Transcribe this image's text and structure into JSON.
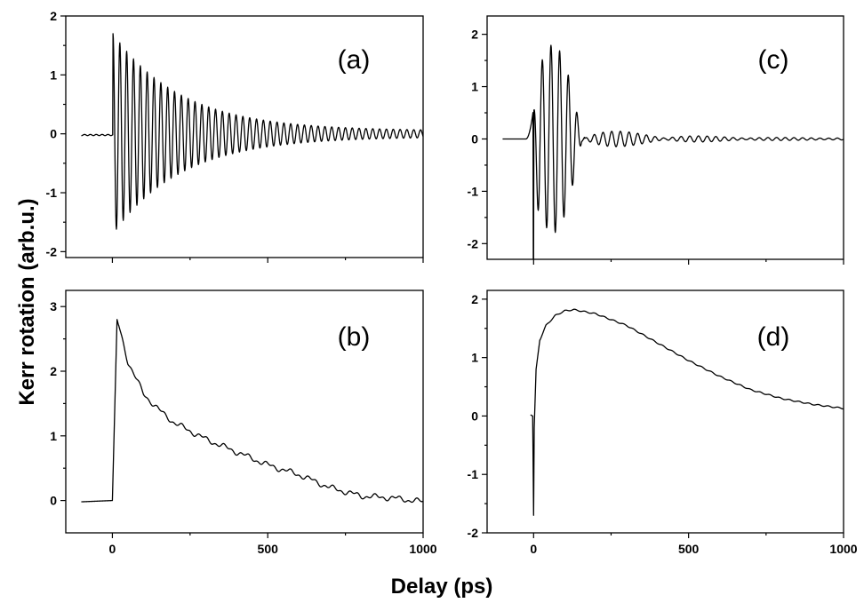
{
  "figure": {
    "ylabel": "Kerr rotation (arb.u.)",
    "xlabel": "Delay (ps)"
  },
  "chart_data": [
    {
      "id": "a",
      "type": "line",
      "panel_label": "(a)",
      "xlim": [
        -150,
        1000
      ],
      "ylim": [
        -2.1,
        2.0
      ],
      "xticks": [
        0,
        500,
        1000
      ],
      "yticks": [
        -2,
        -1,
        0,
        1,
        2
      ],
      "show_xticklabels": false,
      "grid": false,
      "series": [
        {
          "kind": "damped_oscillation",
          "pre_level": -0.02,
          "onset": 2,
          "amplitude": 1.65,
          "period": 22,
          "decay": 220,
          "floor": 0.05,
          "offset": 0.0,
          "x_start": -100,
          "x_end": 1000
        }
      ]
    },
    {
      "id": "b",
      "type": "line",
      "panel_label": "(b)",
      "xlim": [
        -150,
        1000
      ],
      "ylim": [
        -0.5,
        3.25
      ],
      "xticks": [
        0,
        500,
        1000
      ],
      "yticks": [
        0,
        1,
        2,
        3
      ],
      "xticklabels": [
        "0",
        "500",
        "1000"
      ],
      "show_xticklabels": true,
      "grid": false,
      "series": [
        {
          "kind": "step_decay",
          "x": [
            -100,
            0,
            15,
            50,
            100,
            150,
            200,
            300,
            400,
            500,
            600,
            700,
            800,
            900,
            1000
          ],
          "y": [
            -0.02,
            0.0,
            2.8,
            2.15,
            1.65,
            1.4,
            1.2,
            0.95,
            0.75,
            0.55,
            0.4,
            0.2,
            0.07,
            0.04,
            -0.02
          ]
        }
      ]
    },
    {
      "id": "c",
      "type": "line",
      "panel_label": "(c)",
      "xlim": [
        -150,
        1000
      ],
      "ylim": [
        -2.3,
        2.35
      ],
      "xticks": [
        0,
        500,
        1000
      ],
      "yticks": [
        -2,
        -1,
        0,
        1,
        2
      ],
      "show_xticklabels": false,
      "grid": false,
      "series": [
        {
          "kind": "beat_oscillation",
          "x_start": -100,
          "x_end": 1000,
          "pre_level": 0.0,
          "spike_x": 0,
          "spike_min": -2.3,
          "bump_peak": 0.55,
          "period": 28,
          "amplitude": 1.8,
          "beat_node": 165,
          "decay": 230
        }
      ]
    },
    {
      "id": "d",
      "type": "line",
      "panel_label": "(d)",
      "xlim": [
        -150,
        1000
      ],
      "ylim": [
        -2.0,
        2.15
      ],
      "xticks": [
        0,
        500,
        1000
      ],
      "yticks": [
        -2,
        -1,
        0,
        1,
        2
      ],
      "xticklabels": [
        "0",
        "500",
        "1000"
      ],
      "show_xticklabels": true,
      "grid": false,
      "series": [
        {
          "kind": "rise_decay",
          "x": [
            -10,
            -3,
            0,
            2,
            8,
            20,
            40,
            70,
            100,
            130,
            200,
            300,
            400,
            500,
            600,
            700,
            800,
            900,
            1000
          ],
          "y": [
            0.02,
            0.0,
            -1.7,
            -0.2,
            0.8,
            1.3,
            1.55,
            1.72,
            1.8,
            1.82,
            1.75,
            1.55,
            1.25,
            0.95,
            0.68,
            0.45,
            0.3,
            0.2,
            0.13
          ]
        }
      ]
    }
  ]
}
